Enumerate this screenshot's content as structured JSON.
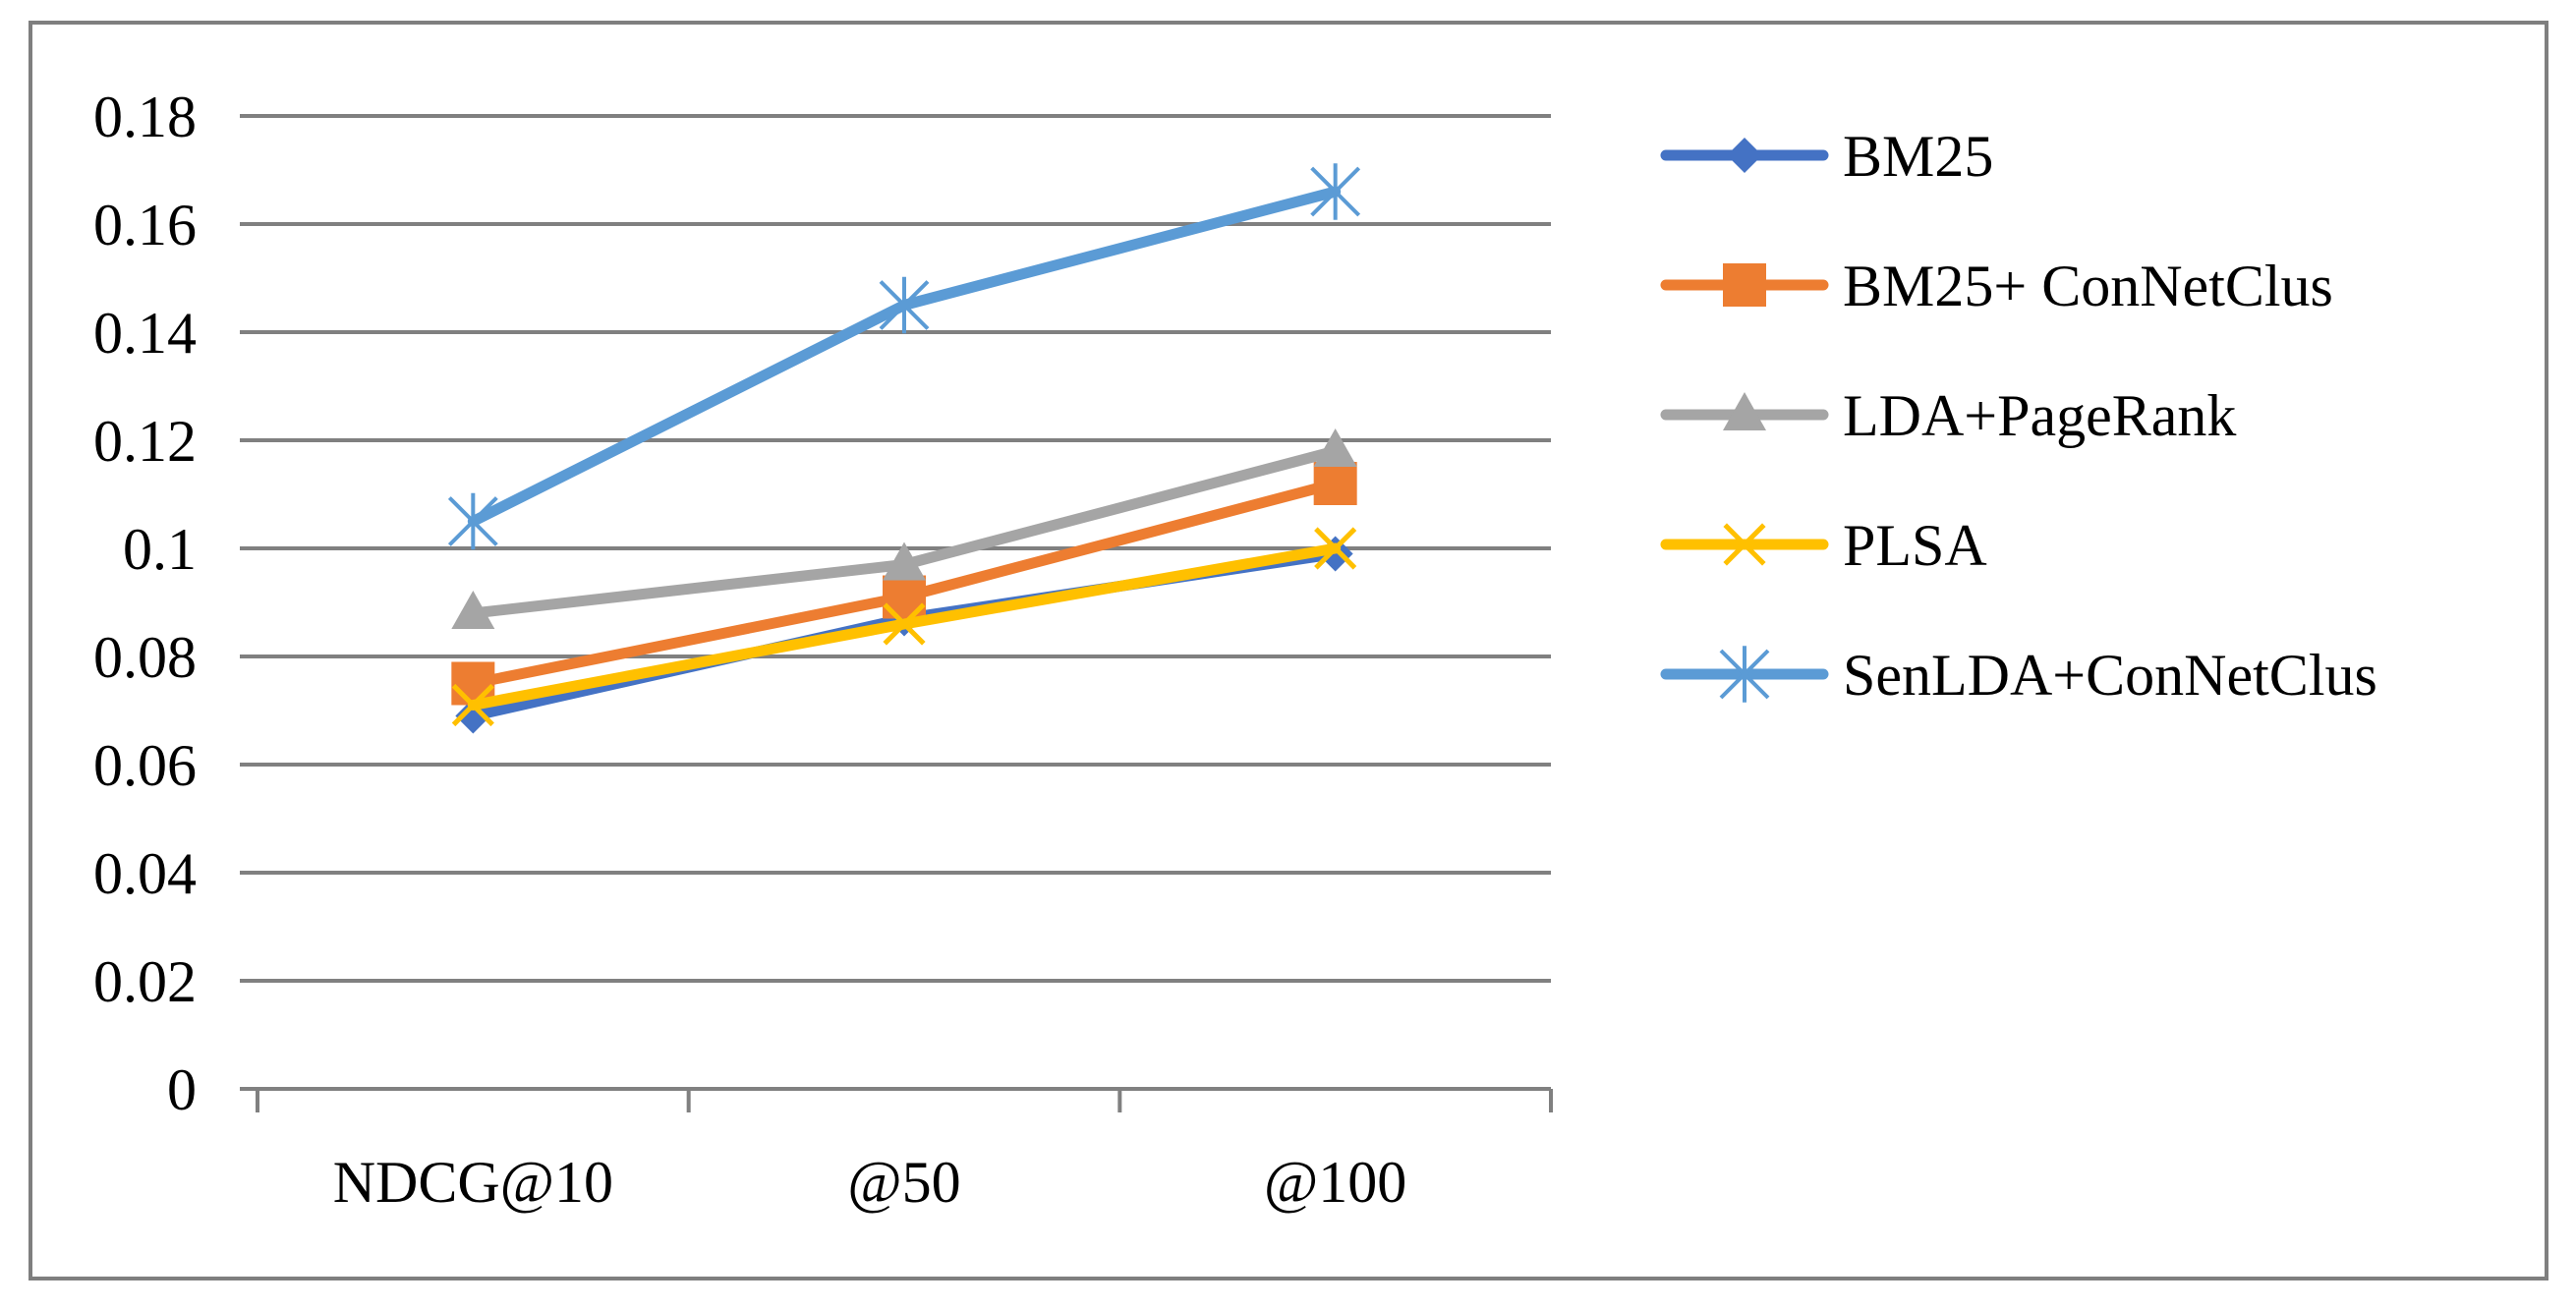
{
  "chart_data": {
    "type": "line",
    "title": "",
    "xlabel": "",
    "ylabel": "",
    "categories": [
      "NDCG@10",
      "@50",
      "@100"
    ],
    "ylim": [
      0,
      0.18
    ],
    "yticks": [
      "0",
      "0.02",
      "0.04",
      "0.06",
      "0.08",
      "0.1",
      "0.12",
      "0.14",
      "0.16",
      "0.18"
    ],
    "grid": true,
    "legend_position": "right",
    "series": [
      {
        "name": "BM25",
        "values": [
          0.069,
          0.087,
          0.099
        ],
        "color": "#4472C4",
        "marker": "diamond"
      },
      {
        "name": "BM25+ ConNetClus",
        "values": [
          0.075,
          0.091,
          0.112
        ],
        "color": "#ED7D31",
        "marker": "square"
      },
      {
        "name": "LDA+PageRank",
        "values": [
          0.088,
          0.097,
          0.118
        ],
        "color": "#A5A5A5",
        "marker": "triangle"
      },
      {
        "name": "PLSA",
        "values": [
          0.071,
          0.086,
          0.1
        ],
        "color": "#FFC000",
        "marker": "x"
      },
      {
        "name": "SenLDA+ConNetClus",
        "values": [
          0.105,
          0.145,
          0.166
        ],
        "color": "#5B9BD5",
        "marker": "asterisk"
      }
    ]
  }
}
